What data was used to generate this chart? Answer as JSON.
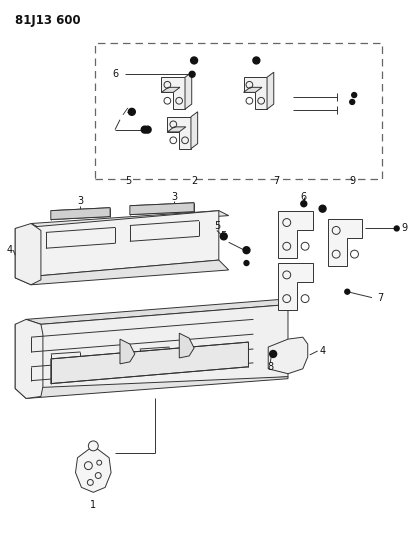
{
  "title": "81J13 600",
  "bg_color": "#ffffff",
  "line_color": "#333333",
  "label_color": "#111111",
  "title_fontsize": 8.5,
  "label_fontsize": 7,
  "figsize": [
    4.09,
    5.33
  ],
  "dpi": 100
}
